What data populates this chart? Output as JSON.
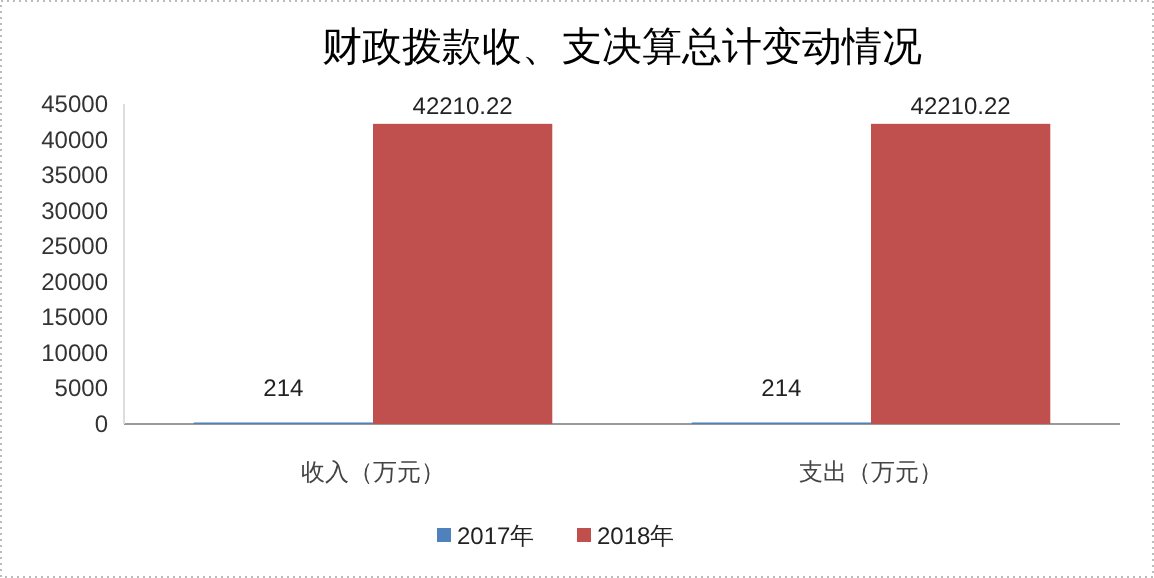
{
  "chart_data": {
    "type": "bar",
    "title": "财政拨款收、支决算总计变动情况",
    "categories": [
      "收入（万元）",
      "支出（万元）"
    ],
    "series": [
      {
        "name": "2017年",
        "color": "#4f81bd",
        "values": [
          214,
          214
        ]
      },
      {
        "name": "2018年",
        "color": "#c0504d",
        "values": [
          42210.22,
          42210.22
        ]
      }
    ],
    "ylim": [
      0,
      45000
    ],
    "yticks": [
      0,
      5000,
      10000,
      15000,
      20000,
      25000,
      30000,
      35000,
      40000,
      45000
    ],
    "data_labels": true,
    "legend": "bottom",
    "grid": false
  }
}
